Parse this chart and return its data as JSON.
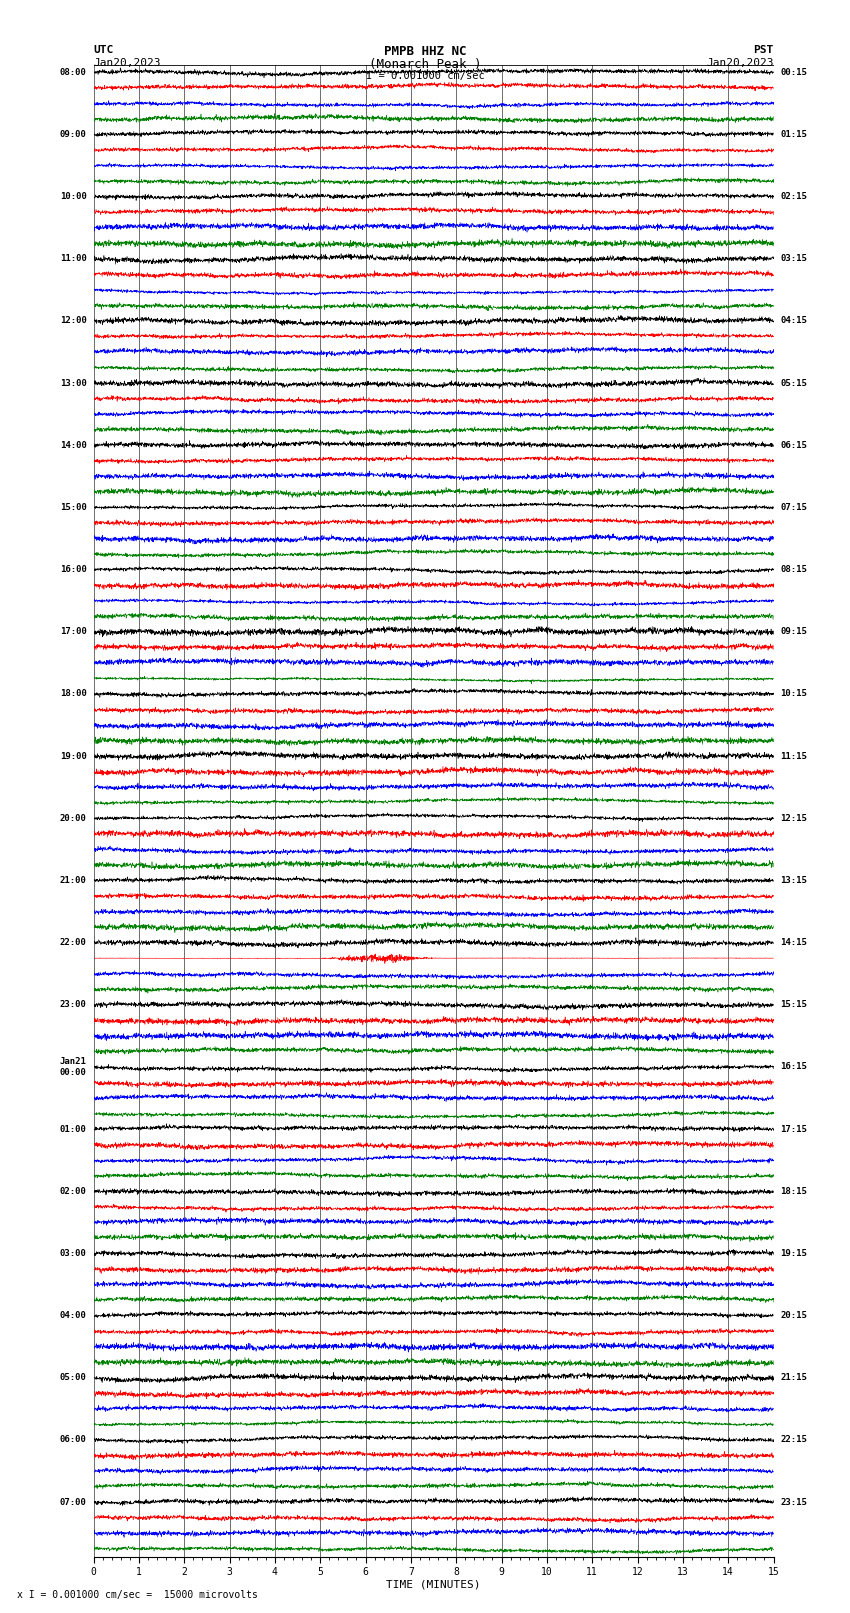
{
  "title_line1": "PMPB HHZ NC",
  "title_line2": "(Monarch Peak )",
  "scale_label": "I = 0.001000 cm/sec",
  "bottom_label": "x I = 0.001000 cm/sec =  15000 microvolts",
  "left_label": "UTC",
  "left_date": "Jan20,2023",
  "right_label": "PST",
  "right_date": "Jan20,2023",
  "xlabel": "TIME (MINUTES)",
  "xlim": [
    0,
    15
  ],
  "xticks_major": [
    0,
    1,
    2,
    3,
    4,
    5,
    6,
    7,
    8,
    9,
    10,
    11,
    12,
    13,
    14,
    15
  ],
  "background_color": "#ffffff",
  "trace_colors": [
    "black",
    "red",
    "blue",
    "green"
  ],
  "utc_labels": [
    "08:00",
    "09:00",
    "10:00",
    "11:00",
    "12:00",
    "13:00",
    "14:00",
    "15:00",
    "16:00",
    "17:00",
    "18:00",
    "19:00",
    "20:00",
    "21:00",
    "22:00",
    "23:00",
    "Jan21\n00:00",
    "01:00",
    "02:00",
    "03:00",
    "04:00",
    "05:00",
    "06:00",
    "07:00"
  ],
  "pst_labels": [
    "00:15",
    "01:15",
    "02:15",
    "03:15",
    "04:15",
    "05:15",
    "06:15",
    "07:15",
    "08:15",
    "09:15",
    "10:15",
    "11:15",
    "12:15",
    "13:15",
    "14:15",
    "15:15",
    "16:15",
    "17:15",
    "18:15",
    "19:15",
    "20:15",
    "21:15",
    "22:15",
    "23:15"
  ],
  "n_hours": 24,
  "traces_per_hour": 4,
  "trace_amplitude": 0.35,
  "event_hour": 14,
  "event_trace_idx": 1,
  "event2_hour": 14,
  "event2_trace_idx": 0
}
